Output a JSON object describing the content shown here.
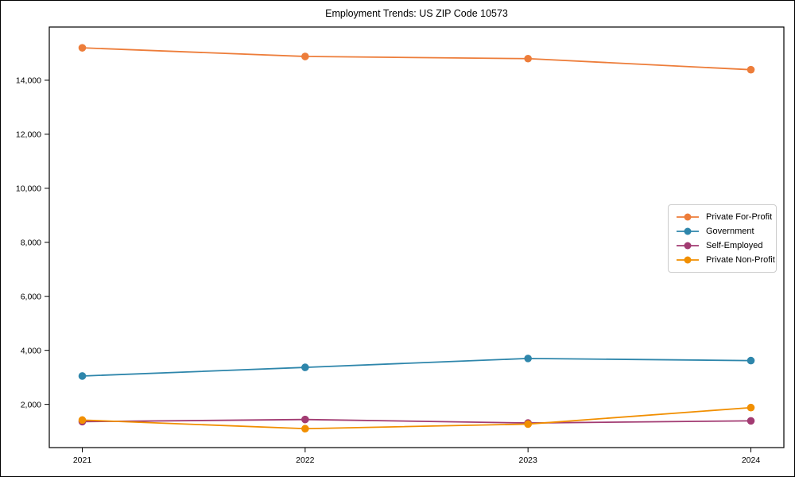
{
  "figure": {
    "background": "#ffffff",
    "frame_color": "#000000"
  },
  "chart_data": {
    "type": "line",
    "title": "Employment Trends: US ZIP Code 10573",
    "xlabel": "",
    "ylabel": "",
    "grid": false,
    "legend_position": "center-right",
    "x": [
      2021,
      2022,
      2023,
      2024
    ],
    "x_tick_labels": [
      "2021",
      "2022",
      "2023",
      "2024"
    ],
    "y_ticks": [
      2000,
      4000,
      6000,
      8000,
      10000,
      12000,
      14000
    ],
    "y_tick_labels": [
      "2,000",
      "4,000",
      "6,000",
      "8,000",
      "10,000",
      "12,000",
      "14,000"
    ],
    "ylim": [
      400,
      15970
    ],
    "series": [
      {
        "name": "Private For-Profit",
        "color": "#ED7D3A",
        "values": [
          15200,
          14880,
          14800,
          14390
        ]
      },
      {
        "name": "Government",
        "color": "#2E86AB",
        "values": [
          3050,
          3370,
          3700,
          3620
        ]
      },
      {
        "name": "Self-Employed",
        "color": "#A23B72",
        "values": [
          1360,
          1440,
          1310,
          1390
        ]
      },
      {
        "name": "Private Non-Profit",
        "color": "#F18F01",
        "values": [
          1420,
          1100,
          1270,
          1880
        ]
      }
    ]
  }
}
